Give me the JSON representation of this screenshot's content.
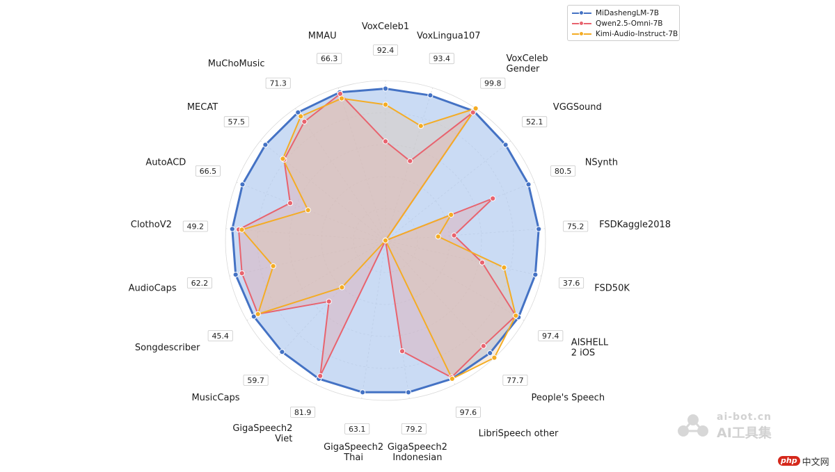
{
  "chart_data": {
    "type": "radar",
    "categories": [
      "VoxCeleb1",
      "VoxLingua107",
      "VoxCeleb\nGender",
      "VGGSound",
      "NSynth",
      "FSDKaggle2018",
      "FSD50K",
      "AISHELL\n2 iOS",
      "People's Speech",
      "LibriSpeech other",
      "GigaSpeech2\nIndonesian",
      "GigaSpeech2\nThai",
      "GigaSpeech2\nViet",
      "MusicCaps",
      "Songdescriber",
      "AudioCaps",
      "ClothoV2",
      "AutoACD",
      "MECAT",
      "MuChoMusic",
      "MMAU"
    ],
    "category_values": [
      "92.4",
      "93.4",
      "99.8",
      "52.1",
      "80.5",
      "75.2",
      "37.6",
      "97.4",
      "77.7",
      "97.6",
      "79.2",
      "63.1",
      "81.9",
      "59.7",
      "45.4",
      "62.2",
      "49.2",
      "66.5",
      "57.5",
      "71.3",
      "66.3"
    ],
    "rlim": [
      0,
      1
    ],
    "grid": true,
    "legend_position": "top-right",
    "series": [
      {
        "name": "MiDashengLM-7B",
        "color": "#4472c4",
        "fill": "#aec7ee",
        "values": [
          0.95,
          0.95,
          0.98,
          0.96,
          0.96,
          0.96,
          0.96,
          0.96,
          0.96,
          0.96,
          0.96,
          0.96,
          0.96,
          0.95,
          0.95,
          0.96,
          0.96,
          0.96,
          0.96,
          0.97,
          0.97
        ]
      },
      {
        "name": "Qwen2.5-Omni-7B",
        "color": "#e8636e",
        "fill": "#e8a0a0",
        "values": [
          0.62,
          0.52,
          0.97,
          0.0,
          0.72,
          0.43,
          0.62,
          0.94,
          0.9,
          0.95,
          0.7,
          0.0,
          0.94,
          0.52,
          0.92,
          0.92,
          0.92,
          0.64,
          0.81,
          0.9,
          0.96
        ]
      },
      {
        "name": "Kimi-Audio-Instruct-7B",
        "color": "#f4ac24",
        "fill": "#e6c6a2",
        "values": [
          0.85,
          0.75,
          1.0,
          0.0,
          0.44,
          0.33,
          0.76,
          0.94,
          1.0,
          0.96,
          0.0,
          0.0,
          0.0,
          0.4,
          0.92,
          0.72,
          0.9,
          0.52,
          0.82,
          0.94,
          0.93
        ]
      }
    ]
  },
  "watermark": {
    "line1": "ai-bot.cn",
    "line2": "AI工具集"
  },
  "site_badge": {
    "logo": "php",
    "text": "中文网"
  }
}
